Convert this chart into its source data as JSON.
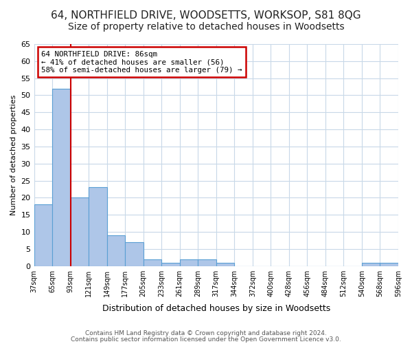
{
  "title1": "64, NORTHFIELD DRIVE, WOODSETTS, WORKSOP, S81 8QG",
  "title2": "Size of property relative to detached houses in Woodsetts",
  "xlabel": "Distribution of detached houses by size in Woodsetts",
  "ylabel": "Number of detached properties",
  "bin_edges": [
    "37sqm",
    "65sqm",
    "93sqm",
    "121sqm",
    "149sqm",
    "177sqm",
    "205sqm",
    "233sqm",
    "261sqm",
    "289sqm",
    "317sqm",
    "344sqm",
    "372sqm",
    "400sqm",
    "428sqm",
    "456sqm",
    "484sqm",
    "512sqm",
    "540sqm",
    "568sqm",
    "596sqm"
  ],
  "bar_heights": [
    18,
    52,
    20,
    23,
    9,
    7,
    2,
    1,
    2,
    2,
    1,
    0,
    0,
    0,
    0,
    0,
    0,
    0,
    1,
    1
  ],
  "bar_color": "#aec6e8",
  "bar_edge_color": "#5a9fd4",
  "annotation_line": "64 NORTHFIELD DRIVE: 86sqm",
  "annotation_line2": "← 41% of detached houses are smaller (56)",
  "annotation_line3": "58% of semi-detached houses are larger (79) →",
  "annotation_box_color": "#ffffff",
  "annotation_border_color": "#cc0000",
  "red_line_bin_index": 1,
  "ylim": [
    0,
    65
  ],
  "yticks": [
    0,
    5,
    10,
    15,
    20,
    25,
    30,
    35,
    40,
    45,
    50,
    55,
    60,
    65
  ],
  "footer1": "Contains HM Land Registry data © Crown copyright and database right 2024.",
  "footer2": "Contains public sector information licensed under the Open Government Licence v3.0.",
  "bg_color": "#ffffff",
  "grid_color": "#c8d8e8",
  "title_fontsize": 11,
  "subtitle_fontsize": 10
}
